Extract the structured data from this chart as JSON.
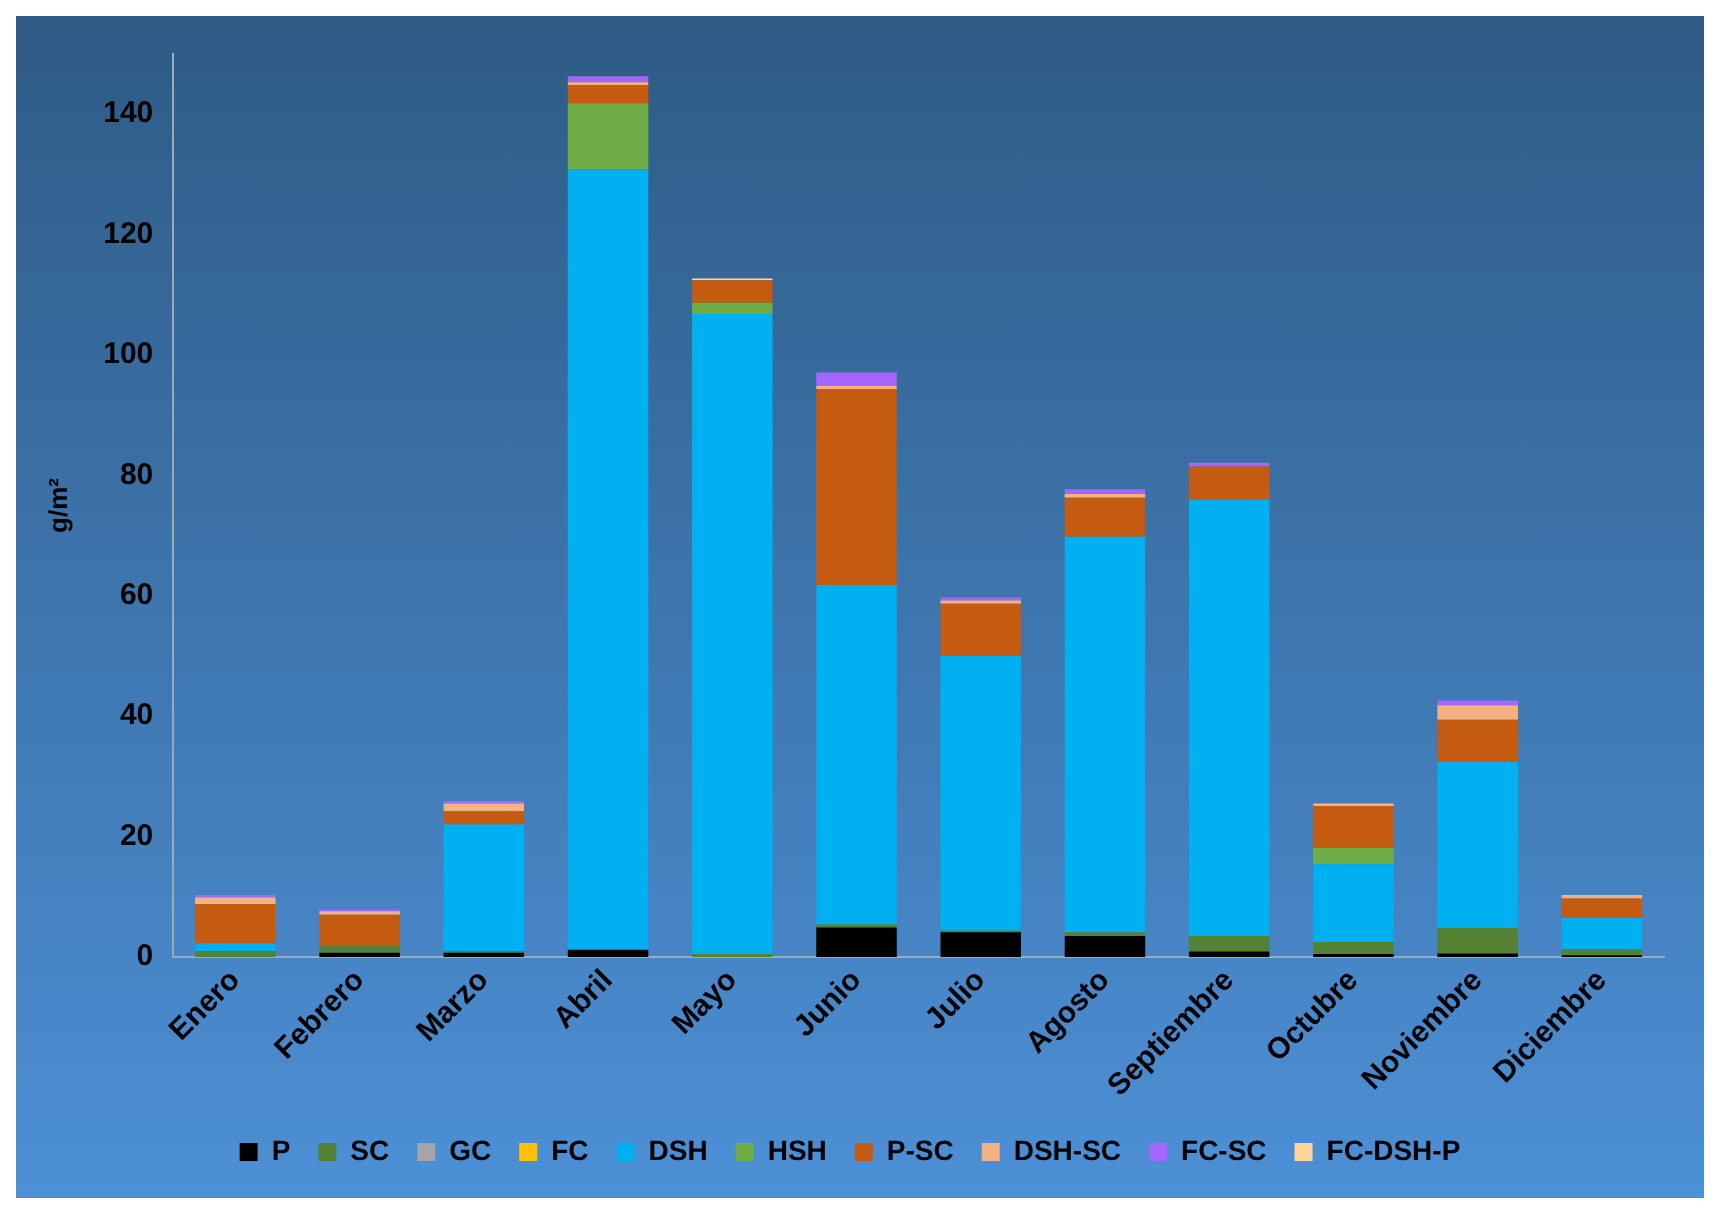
{
  "chart_data": {
    "type": "bar",
    "stacked": true,
    "ylabel": "g/m²",
    "categories": [
      "Enero",
      "Febrero",
      "Marzo",
      "Abril",
      "Mayo",
      "Junio",
      "Julio",
      "Agosto",
      "Septiembre",
      "Octubre",
      "Noviembre",
      "Diciembre"
    ],
    "series": [
      {
        "name": "P",
        "color": "#000000",
        "values": [
          0,
          0.7,
          0.7,
          1.2,
          0,
          4.9,
          4.1,
          3.5,
          0.9,
          0.5,
          0.6,
          0.3
        ]
      },
      {
        "name": "SC",
        "color": "#548235",
        "values": [
          1,
          1.2,
          0.3,
          0,
          0.5,
          0.5,
          0.3,
          0.6,
          2.6,
          2,
          4.2,
          1
        ]
      },
      {
        "name": "GC",
        "color": "#a5a5a5",
        "values": [
          0,
          0,
          0,
          0,
          0,
          0,
          0,
          0,
          0,
          0,
          0,
          0
        ]
      },
      {
        "name": "FC",
        "color": "#ffc000",
        "values": [
          0,
          0,
          0,
          0,
          0,
          0,
          0,
          0,
          0,
          0,
          0,
          0
        ]
      },
      {
        "name": "DSH",
        "color": "#00b0f0",
        "values": [
          1.3,
          0,
          21,
          129.6,
          106.3,
          56.4,
          45.6,
          65.7,
          72.5,
          12.9,
          27.6,
          5.2
        ]
      },
      {
        "name": "HSH",
        "color": "#70ad47",
        "values": [
          0,
          0,
          0,
          11,
          1.9,
          0,
          0,
          0,
          0,
          2.7,
          0,
          0
        ]
      },
      {
        "name": "P-SC",
        "color": "#c55a11",
        "values": [
          6.5,
          5.1,
          2.2,
          3,
          3.7,
          32.5,
          8.7,
          6.5,
          5.5,
          7,
          7,
          3.2
        ]
      },
      {
        "name": "DSH-SC",
        "color": "#f4b183",
        "values": [
          1.1,
          0.6,
          1.3,
          0.5,
          0,
          0.6,
          0.5,
          0.6,
          0,
          0.4,
          2.4,
          0.6
        ]
      },
      {
        "name": "FC-SC",
        "color": "#a366ff",
        "values": [
          0.4,
          0.3,
          0.4,
          1,
          0,
          2.2,
          0.5,
          0.8,
          0.6,
          0,
          0.8,
          0
        ]
      },
      {
        "name": "FC-DSH-P",
        "color": "#ffd699",
        "values": [
          0,
          0,
          0,
          0,
          0.3,
          0,
          0,
          0,
          0,
          0,
          0,
          0
        ]
      }
    ],
    "ylim": [
      0,
      150
    ],
    "yticks": [
      0,
      20,
      40,
      60,
      80,
      100,
      120,
      140
    ],
    "grid": false,
    "legend": "bottom"
  }
}
